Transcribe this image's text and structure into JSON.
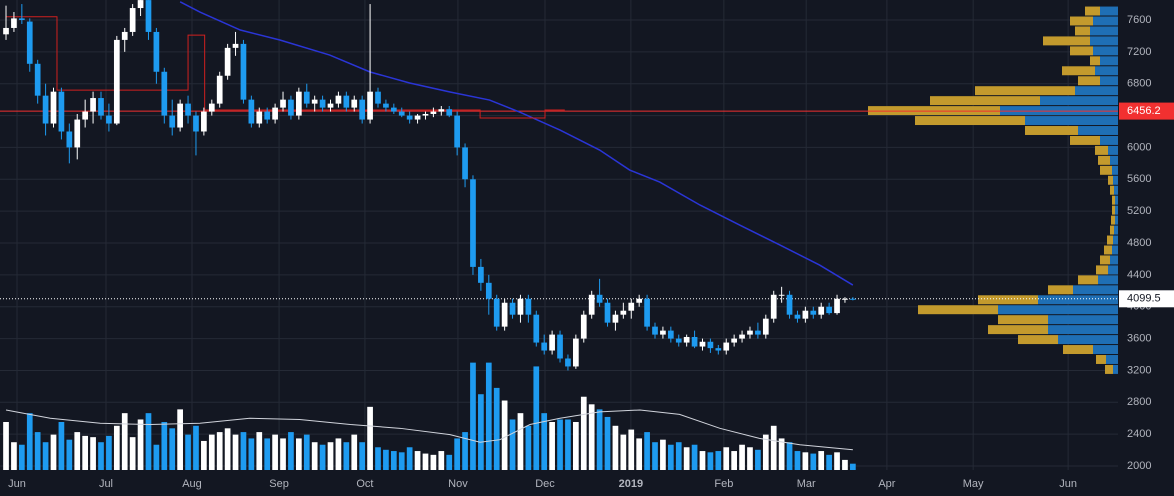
{
  "chart_data": {
    "type": "candlestick",
    "background": "#131722",
    "up_color": "#ffffff",
    "down_color": "#1e9bf0",
    "grid": true,
    "xlim": [
      -0.76,
      140.5
    ],
    "xticks": [
      {
        "value": 1.39,
        "label": "Jun"
      },
      {
        "value": 12.63,
        "label": "Jul"
      },
      {
        "value": 23.5,
        "label": "Aug"
      },
      {
        "value": 34.5,
        "label": "Sep"
      },
      {
        "value": 45.35,
        "label": "Oct"
      },
      {
        "value": 57.1,
        "label": "Nov"
      },
      {
        "value": 68.1,
        "label": "Dec"
      },
      {
        "value": 78.95,
        "label": "2019"
      },
      {
        "value": 90.7,
        "label": "Feb"
      },
      {
        "value": 101.1,
        "label": "Mar"
      },
      {
        "value": 111.3,
        "label": "Apr"
      },
      {
        "value": 122.2,
        "label": "May"
      },
      {
        "value": 134.2,
        "label": "Jun"
      }
    ],
    "ylim": [
      1950,
      7851
    ],
    "yticks": [
      2000,
      2400,
      2800,
      3200,
      3600,
      4000,
      4400,
      4800,
      5200,
      5600,
      6000,
      6400,
      6800,
      7200,
      7600
    ],
    "open": [
      7420,
      7500,
      7620,
      7580,
      7050,
      6650,
      6300,
      6700,
      6200,
      6000,
      6350,
      6450,
      6620,
      6400,
      6300,
      7350,
      7450,
      7750,
      7850,
      7450,
      6950,
      6400,
      6250,
      6550,
      6400,
      6200,
      6450,
      6550,
      6900,
      7250,
      7300,
      6600,
      6300,
      6450,
      6350,
      6500,
      6600,
      6400,
      6700,
      6550,
      6600,
      6500,
      6550,
      6650,
      6500,
      6600,
      6350,
      6700,
      6550,
      6500,
      6450,
      6400,
      6350,
      6400,
      6420,
      6450,
      6480,
      6400,
      6000,
      5600,
      4500,
      4300,
      4100,
      3750,
      4050,
      3900,
      4100,
      3900,
      3550,
      3450,
      3650,
      3350,
      3250,
      3600,
      3900,
      4150,
      4050,
      3800,
      3900,
      3950,
      4050,
      4100,
      3750,
      3650,
      3700,
      3600,
      3550,
      3620,
      3500,
      3560,
      3480,
      3450,
      3550,
      3600,
      3650,
      3700,
      3650,
      3850,
      4150,
      4150,
      3900,
      3850,
      3950,
      3900,
      4000,
      3920,
      4100,
      4100
    ],
    "high": [
      7780,
      7700,
      7800,
      7620,
      7100,
      6800,
      6750,
      6750,
      6300,
      6420,
      6600,
      6700,
      6700,
      6550,
      7400,
      7500,
      7800,
      7950,
      8100,
      7500,
      7000,
      6600,
      6600,
      6650,
      6450,
      6500,
      6600,
      6950,
      7300,
      7450,
      7350,
      6650,
      6500,
      6500,
      6550,
      6700,
      6650,
      6750,
      6800,
      6650,
      6650,
      6600,
      6700,
      6700,
      6650,
      6650,
      7800,
      6750,
      6600,
      6550,
      6500,
      6450,
      6420,
      6450,
      6500,
      6520,
      6520,
      6450,
      6050,
      5650,
      4600,
      4400,
      4150,
      4100,
      4100,
      4150,
      4150,
      3950,
      3650,
      3700,
      3700,
      3400,
      3650,
      3950,
      4200,
      4350,
      4100,
      3950,
      4050,
      4100,
      4150,
      4150,
      3800,
      3750,
      3750,
      3650,
      3650,
      3700,
      3600,
      3600,
      3520,
      3600,
      3650,
      3700,
      3750,
      3800,
      3900,
      4200,
      4250,
      4200,
      3950,
      4000,
      4000,
      4050,
      4050,
      4150,
      4120,
      4120
    ],
    "low": [
      7350,
      7450,
      7550,
      6950,
      6550,
      6150,
      6250,
      6100,
      5800,
      5850,
      6250,
      6300,
      6350,
      6200,
      6280,
      7200,
      7400,
      7650,
      7350,
      6800,
      6300,
      6150,
      6200,
      6300,
      5900,
      6150,
      6400,
      6500,
      6850,
      7150,
      6550,
      6250,
      6250,
      6300,
      6300,
      6450,
      6350,
      6350,
      6500,
      6450,
      6450,
      6450,
      6500,
      6450,
      6450,
      6300,
      6300,
      6500,
      6450,
      6420,
      6380,
      6300,
      6300,
      6350,
      6380,
      6400,
      6380,
      5900,
      5500,
      4400,
      4200,
      3900,
      3700,
      3700,
      3850,
      3800,
      3800,
      3500,
      3400,
      3400,
      3300,
      3200,
      3220,
      3550,
      3850,
      4000,
      3750,
      3700,
      3850,
      3850,
      4000,
      3700,
      3600,
      3600,
      3550,
      3500,
      3500,
      3480,
      3450,
      3420,
      3400,
      3400,
      3500,
      3550,
      3600,
      3600,
      3600,
      3800,
      4050,
      3850,
      3800,
      3800,
      3850,
      3850,
      3900,
      3900,
      4050,
      4080
    ],
    "close": [
      7500,
      7620,
      7600,
      7050,
      6650,
      6300,
      6700,
      6200,
      6000,
      6350,
      6450,
      6620,
      6400,
      6300,
      7350,
      7450,
      7750,
      7850,
      7450,
      6950,
      6400,
      6250,
      6550,
      6400,
      6200,
      6450,
      6550,
      6900,
      7250,
      7300,
      6600,
      6300,
      6450,
      6350,
      6500,
      6600,
      6400,
      6700,
      6550,
      6600,
      6500,
      6550,
      6650,
      6500,
      6600,
      6350,
      6700,
      6550,
      6500,
      6450,
      6400,
      6350,
      6400,
      6420,
      6450,
      6480,
      6400,
      6000,
      5600,
      4500,
      4300,
      4100,
      3750,
      4050,
      3900,
      4100,
      3900,
      3550,
      3450,
      3650,
      3350,
      3250,
      3600,
      3900,
      4150,
      4050,
      3800,
      3900,
      3950,
      4050,
      4100,
      3750,
      3650,
      3700,
      3600,
      3550,
      3620,
      3500,
      3560,
      3480,
      3450,
      3550,
      3600,
      3650,
      3700,
      3650,
      3850,
      4150,
      4150,
      3900,
      3850,
      3950,
      3900,
      4000,
      3920,
      4100,
      4100,
      4099.5
    ],
    "volume": [
      38,
      22,
      20,
      45,
      30,
      22,
      28,
      38,
      24,
      30,
      27,
      26,
      22,
      27,
      35,
      45,
      26,
      40,
      45,
      20,
      38,
      33,
      48,
      28,
      35,
      23,
      28,
      30,
      33,
      28,
      30,
      25,
      30,
      25,
      28,
      25,
      30,
      25,
      28,
      22,
      20,
      22,
      25,
      22,
      28,
      22,
      50,
      18,
      16,
      15,
      14,
      18,
      15,
      13,
      12,
      15,
      12,
      25,
      30,
      85,
      60,
      85,
      65,
      55,
      40,
      45,
      35,
      82,
      45,
      38,
      40,
      40,
      38,
      58,
      52,
      48,
      42,
      35,
      28,
      32,
      25,
      30,
      22,
      24,
      20,
      22,
      18,
      20,
      15,
      14,
      15,
      18,
      15,
      20,
      18,
      16,
      28,
      35,
      25,
      22,
      15,
      14,
      13,
      15,
      12,
      14,
      8,
      5
    ],
    "volume_ylim": [
      0,
      95
    ],
    "volume_ma": {
      "color": "#d1d4dc",
      "x": [
        0,
        5.6,
        11.9,
        18.2,
        24.5,
        30.8,
        37.1,
        43.5,
        49.8,
        56.1,
        59.9,
        62.4,
        66.2,
        70.0,
        75.0,
        80.1,
        85.1,
        90.2,
        95.2,
        100.3,
        107
      ],
      "values": [
        47.5,
        41,
        37,
        36,
        37,
        41,
        40,
        36,
        33,
        28,
        22,
        24,
        36,
        41,
        46,
        47.5,
        44,
        33,
        25,
        20,
        16
      ]
    },
    "lines": [
      {
        "color": "#2a35d6",
        "x": [
          22.0,
          24.5,
          29.6,
          34.6,
          40.9,
          46.0,
          51.0,
          56.1,
          61.1,
          64.9,
          70.0,
          75.0,
          78.8,
          82.6,
          87.7,
          92.7,
          97.8,
          102.8,
          107
        ],
        "values": [
          7828,
          7700,
          7474,
          7349,
          7160,
          6947,
          6809,
          6696,
          6595,
          6444,
          6218,
          5967,
          5716,
          5565,
          5276,
          5025,
          4774,
          4523,
          4272
        ]
      },
      {
        "color": "#d0201f",
        "x": [
          0,
          6.44,
          6.44,
          23.0,
          23.0,
          25.1,
          25.1,
          59.9,
          59.9,
          68.1,
          68.1,
          70.6
        ],
        "values": [
          7640,
          7640,
          6720,
          6720,
          7410,
          7410,
          6470,
          6470,
          6370,
          6370,
          6470,
          6470
        ]
      }
    ],
    "price_lines": [
      {
        "value": 6456.2,
        "color": "#f23030",
        "text_color": "#ffffff",
        "dash": false
      },
      {
        "value": 4099.5,
        "color": "#ffffff",
        "text_color": "#131722",
        "dash": true
      }
    ],
    "profile": {
      "bins": [
        3150,
        3275,
        3400,
        3525,
        3650,
        3775,
        3900,
        4025,
        4150,
        4275,
        4400,
        4525,
        4650,
        4775,
        4900,
        5025,
        5150,
        5275,
        5400,
        5525,
        5650,
        5775,
        5900,
        6025,
        6150,
        6275,
        6400,
        6525,
        6650,
        6775,
        6900,
        7025,
        7150,
        7275,
        7400,
        7525,
        7650,
        7775
      ],
      "xlim": [
        0,
        300
      ],
      "series": [
        {
          "color": "#1f6fb5",
          "values": [
            5,
            12,
            25,
            60,
            70,
            70,
            120,
            80,
            45,
            20,
            10,
            8,
            6,
            5,
            4,
            3,
            3,
            3,
            4,
            5,
            6,
            8,
            10,
            18,
            40,
            93,
            118,
            78,
            43,
            18,
            23,
            18,
            25,
            28,
            28,
            25,
            18
          ]
        },
        {
          "color": "#c39a2d",
          "values": [
            8,
            10,
            30,
            40,
            60,
            50,
            80,
            60,
            25,
            20,
            12,
            10,
            8,
            6,
            4,
            4,
            3,
            3,
            4,
            5,
            12,
            12,
            13,
            30,
            53,
            110,
            132,
            110,
            100,
            22,
            33,
            10,
            23,
            47,
            15,
            23,
            15
          ]
        }
      ]
    }
  }
}
